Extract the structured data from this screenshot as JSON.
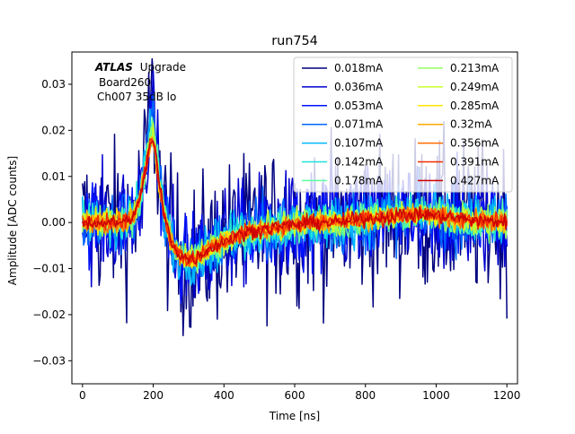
{
  "chart_data": {
    "type": "line",
    "title": "run754",
    "xlabel": "Time [ns]",
    "ylabel": "Amplitude [ADC counts]",
    "xlim": [
      -30,
      1230
    ],
    "ylim": [
      -0.035,
      0.037
    ],
    "xticks": [
      0,
      200,
      400,
      600,
      800,
      1000,
      1200
    ],
    "xtick_labels": [
      "0",
      "200",
      "400",
      "600",
      "800",
      "1000",
      "1200"
    ],
    "yticks": [
      -0.03,
      -0.02,
      -0.01,
      0.0,
      0.01,
      0.02,
      0.03
    ],
    "ytick_labels": [
      "−0.03",
      "−0.02",
      "−0.01",
      "0.00",
      "0.01",
      "0.02",
      "0.03"
    ],
    "grid": false,
    "legend_position": "top-right",
    "legend_columns": 2,
    "annotation": {
      "atlas": "ATLAS",
      "upgrade": "Upgrade",
      "board": "Board260",
      "channel": "Ch007 35dB lo"
    },
    "x": [
      0,
      25,
      50,
      75,
      100,
      125,
      150,
      165,
      180,
      195,
      205,
      215,
      230,
      250,
      275,
      300,
      325,
      350,
      400,
      450,
      500,
      550,
      600,
      650,
      700,
      750,
      800,
      850,
      900,
      950,
      1000,
      1050,
      1100,
      1150,
      1200
    ],
    "mean_waveform": [
      0.0,
      0.0,
      0.0,
      0.0,
      0.0,
      0.0003,
      0.002,
      0.006,
      0.012,
      0.016,
      0.015,
      0.01,
      0.002,
      -0.004,
      -0.007,
      -0.008,
      -0.0075,
      -0.006,
      -0.004,
      -0.0025,
      -0.0015,
      -0.001,
      -0.0005,
      0.0,
      0.0,
      0.0003,
      0.0008,
      0.0012,
      0.0016,
      0.0017,
      0.0015,
      0.001,
      0.0006,
      0.0003,
      0.0002
    ],
    "series": [
      {
        "name": "0.018mA",
        "color": "#00007f",
        "noise": 0.0085,
        "peak": 0.0105
      },
      {
        "name": "0.036mA",
        "color": "#0000d0",
        "noise": 0.0058,
        "peak": 0.0084
      },
      {
        "name": "0.053mA",
        "color": "#0011ff",
        "noise": 0.0045,
        "peak": 0.0078
      },
      {
        "name": "0.071mA",
        "color": "#0068ff",
        "noise": 0.0036,
        "peak": 0.0065
      },
      {
        "name": "0.107mA",
        "color": "#00b8ff",
        "noise": 0.0028,
        "peak": 0.0055
      },
      {
        "name": "0.142mA",
        "color": "#1ee2d8",
        "noise": 0.0022,
        "peak": 0.0048
      },
      {
        "name": "0.178mA",
        "color": "#5bffa0",
        "noise": 0.0019,
        "peak": 0.0042
      },
      {
        "name": "0.213mA",
        "color": "#93ff63",
        "noise": 0.0016,
        "peak": 0.0036
      },
      {
        "name": "0.249mA",
        "color": "#c9ff2e",
        "noise": 0.0014,
        "peak": 0.0032
      },
      {
        "name": "0.285mA",
        "color": "#ffe600",
        "noise": 0.0012,
        "peak": 0.0028
      },
      {
        "name": "0.32mA",
        "color": "#ffa800",
        "noise": 0.0011,
        "peak": 0.0025
      },
      {
        "name": "0.356mA",
        "color": "#ff6a00",
        "noise": 0.001,
        "peak": 0.0022
      },
      {
        "name": "0.391mA",
        "color": "#f42a00",
        "noise": 0.0009,
        "peak": 0.002
      },
      {
        "name": "0.427mA",
        "color": "#cc0000",
        "noise": 0.0008,
        "peak": 0.0018
      }
    ]
  }
}
